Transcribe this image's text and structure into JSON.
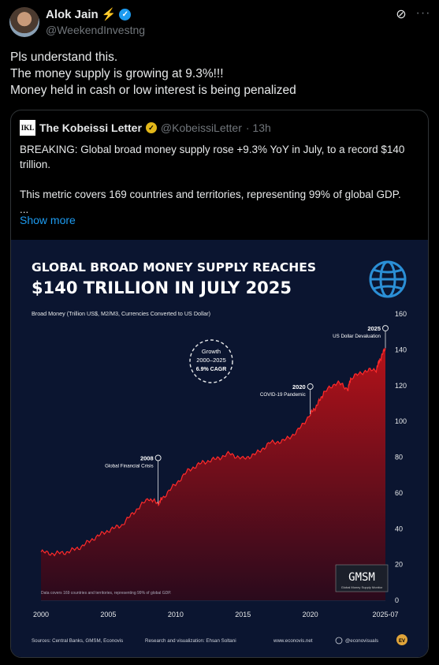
{
  "post": {
    "author_name": "Alok Jain",
    "author_handle": "@WeekendInvestng",
    "lines": [
      "Pls understand this.",
      "The money supply is growing at 9.3%!!!",
      "Money held in cash or low interest is being penalized"
    ]
  },
  "quote": {
    "logo_text": "IKL",
    "author_name": "The Kobeissi Letter",
    "author_handle": "@KobeissiLetter",
    "time": "· 13h",
    "paragraph1": "BREAKING: Global broad money supply rose +9.3% YoY in July, to a record $140 trillion.",
    "paragraph2": "This metric covers 169 countries and territories, representing 99% of global GDP.",
    "ellipsis": "...",
    "show_more": "Show more"
  },
  "colors": {
    "verified": "#1d9bf0",
    "link": "#1d9bf0",
    "gold": "#e2b719",
    "chart_bg": "#0b1530",
    "area": "#8b0f14"
  },
  "chart_data": {
    "type": "area",
    "title_line1": "GLOBAL BROAD MONEY SUPPLY REACHES",
    "title_line2": "$140 TRILLION IN JULY 2025",
    "ylabel": "Broad Money (Trillion US$, M2/M3, Currencies Converted to US Dollar)",
    "xlim": [
      2000,
      2025.58
    ],
    "ylim": [
      0,
      160
    ],
    "x_ticks": [
      "2000",
      "2005",
      "2010",
      "2015",
      "2020",
      "2025-07"
    ],
    "y_ticks": [
      "0",
      "20",
      "40",
      "60",
      "80",
      "100",
      "120",
      "140",
      "160"
    ],
    "series": [
      {
        "x": [
          2000,
          2001,
          2002,
          2003,
          2004,
          2005,
          2006,
          2007,
          2008,
          2008.7,
          2009,
          2010,
          2011,
          2012,
          2013,
          2014,
          2015,
          2016,
          2017,
          2018,
          2019,
          2020,
          2020.5,
          2021,
          2022,
          2022.8,
          2023,
          2024,
          2024.9,
          2025.2,
          2025.58
        ],
        "y": [
          27,
          26,
          27,
          30,
          35,
          39,
          42,
          50,
          57,
          54,
          57,
          65,
          73,
          77,
          79,
          82,
          79,
          82,
          88,
          89,
          94,
          104,
          109,
          116,
          122,
          118,
          124,
          128,
          129,
          135,
          141
        ]
      }
    ],
    "annotations": [
      {
        "year": "2008",
        "label": "Global Financial Crisis",
        "x": 2008.7,
        "y": 54
      },
      {
        "year": "2020",
        "label": "COVID-19 Pandemic",
        "x": 2020.0,
        "y": 104
      },
      {
        "year": "2025",
        "label": "US Dollar Devaluation",
        "x": 2025.58,
        "y": 141
      }
    ],
    "growth_badge": {
      "line1": "Growth",
      "line2": "2000–2025",
      "line3": "6.9% CAGR"
    },
    "footnote": "Data covers 169 countries and territories, representing 99% of global GDP.",
    "gmsm_title": "GMSM",
    "gmsm_sub": "Global Money Supply Monitor",
    "sources": "Sources: Central Banks, GMSM, Econovis",
    "research": "Research and visualization: Ehsan Soltani",
    "website": "www.econovis.net",
    "social": "@econovisuals",
    "brand_mark": "EV"
  }
}
